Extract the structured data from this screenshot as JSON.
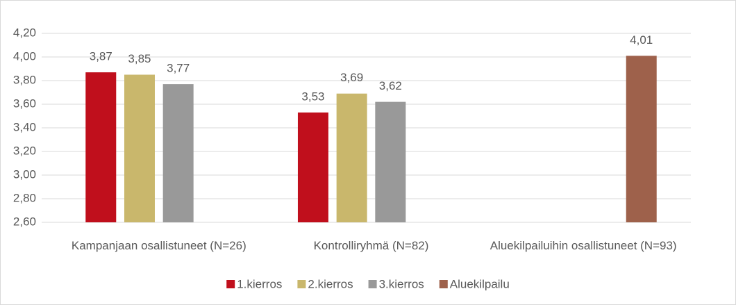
{
  "chart_data": {
    "type": "bar",
    "categories": [
      "Kampanjaan osallistuneet (N=26)",
      "Kontrolliryhmä (N=82)",
      "Aluekilpailuihin osallistuneet (N=93)"
    ],
    "series": [
      {
        "name": "1.kierros",
        "color": "#c00f1c",
        "values": [
          3.87,
          3.53,
          null
        ],
        "value_labels": [
          "3,87",
          "3,53",
          null
        ]
      },
      {
        "name": "2.kierros",
        "color": "#c9b76c",
        "values": [
          3.85,
          3.69,
          null
        ],
        "value_labels": [
          "3,85",
          "3,69",
          null
        ]
      },
      {
        "name": "3.kierros",
        "color": "#999999",
        "values": [
          3.77,
          3.62,
          null
        ],
        "value_labels": [
          "3,77",
          "3,62",
          null
        ]
      },
      {
        "name": "Aluekilpailu",
        "color": "#9e614b",
        "values": [
          null,
          null,
          4.01
        ],
        "value_labels": [
          null,
          null,
          "4,01"
        ]
      }
    ],
    "ylim": [
      2.6,
      4.2
    ],
    "yticks": [
      {
        "value": 2.6,
        "label": "2,60"
      },
      {
        "value": 2.8,
        "label": "2,80"
      },
      {
        "value": 3.0,
        "label": "3,00"
      },
      {
        "value": 3.2,
        "label": "3,20"
      },
      {
        "value": 3.4,
        "label": "3,40"
      },
      {
        "value": 3.6,
        "label": "3,60"
      },
      {
        "value": 3.8,
        "label": "3,80"
      },
      {
        "value": 4.0,
        "label": "4,00"
      },
      {
        "value": 4.2,
        "label": "4,20"
      }
    ],
    "grid": true,
    "legend": "bottom"
  }
}
